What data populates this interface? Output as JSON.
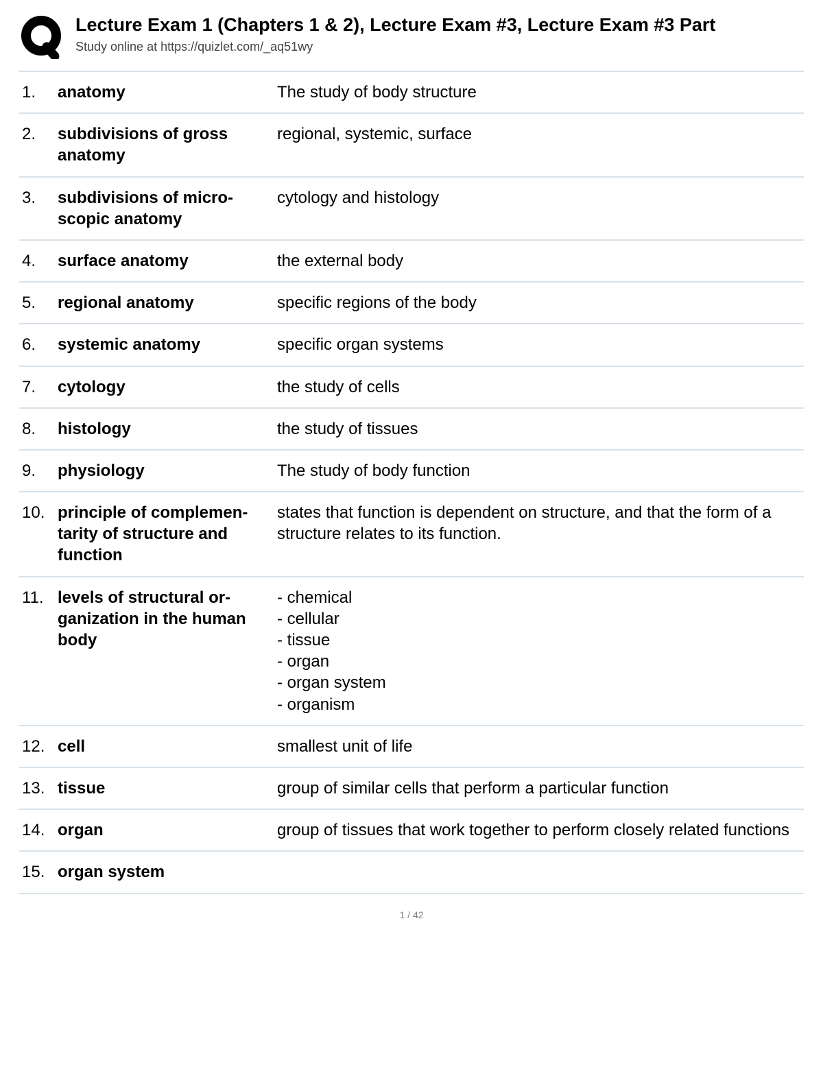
{
  "header": {
    "title": "Lecture Exam 1 (Chapters 1 & 2), Lecture Exam #3, Lecture Exam #3 Part",
    "subtitle": "Study online at https://quizlet.com/_aq51wy"
  },
  "logo": {
    "stroke_color": "#000000",
    "stroke_width": 14,
    "size": 64
  },
  "divider_color": "#d9e2ea",
  "body_font_size": 24,
  "rows": [
    {
      "n": "1.",
      "term": "anatomy",
      "def": "The study of body structure"
    },
    {
      "n": "2.",
      "term": "subdivisions of gross anatomy",
      "def": "regional, systemic, surface"
    },
    {
      "n": "3.",
      "term": "subdivisions of micro-scopic anatomy",
      "def": "cytology and histology"
    },
    {
      "n": "4.",
      "term": "surface anatomy",
      "def": "the external body"
    },
    {
      "n": "5.",
      "term": "regional anatomy",
      "def": "specific regions of the body"
    },
    {
      "n": "6.",
      "term": "systemic anatomy",
      "def": "specific organ systems"
    },
    {
      "n": "7.",
      "term": "cytology",
      "def": "the study of cells"
    },
    {
      "n": "8.",
      "term": "histology",
      "def": "the study of tissues"
    },
    {
      "n": "9.",
      "term": "physiology",
      "def": "The study of body function"
    },
    {
      "n": "10.",
      "term": "principle of complemen-tarity of structure and function",
      "def": "states that function is dependent on structure, and that the form of a structure relates to its function."
    },
    {
      "n": "11.",
      "term": "levels of structural or-ganization in the human body",
      "def": "- chemical\n- cellular\n- tissue\n- organ\n- organ system\n- organism"
    },
    {
      "n": "12.",
      "term": "cell",
      "def": "smallest unit of life"
    },
    {
      "n": "13.",
      "term": "tissue",
      "def": "group of similar cells that perform a particular function"
    },
    {
      "n": "14.",
      "term": "organ",
      "def": "group of tissues that work together to perform closely related functions"
    },
    {
      "n": "15.",
      "term": "organ system",
      "def": ""
    }
  ],
  "footer": {
    "page_indicator": "1 / 42"
  }
}
